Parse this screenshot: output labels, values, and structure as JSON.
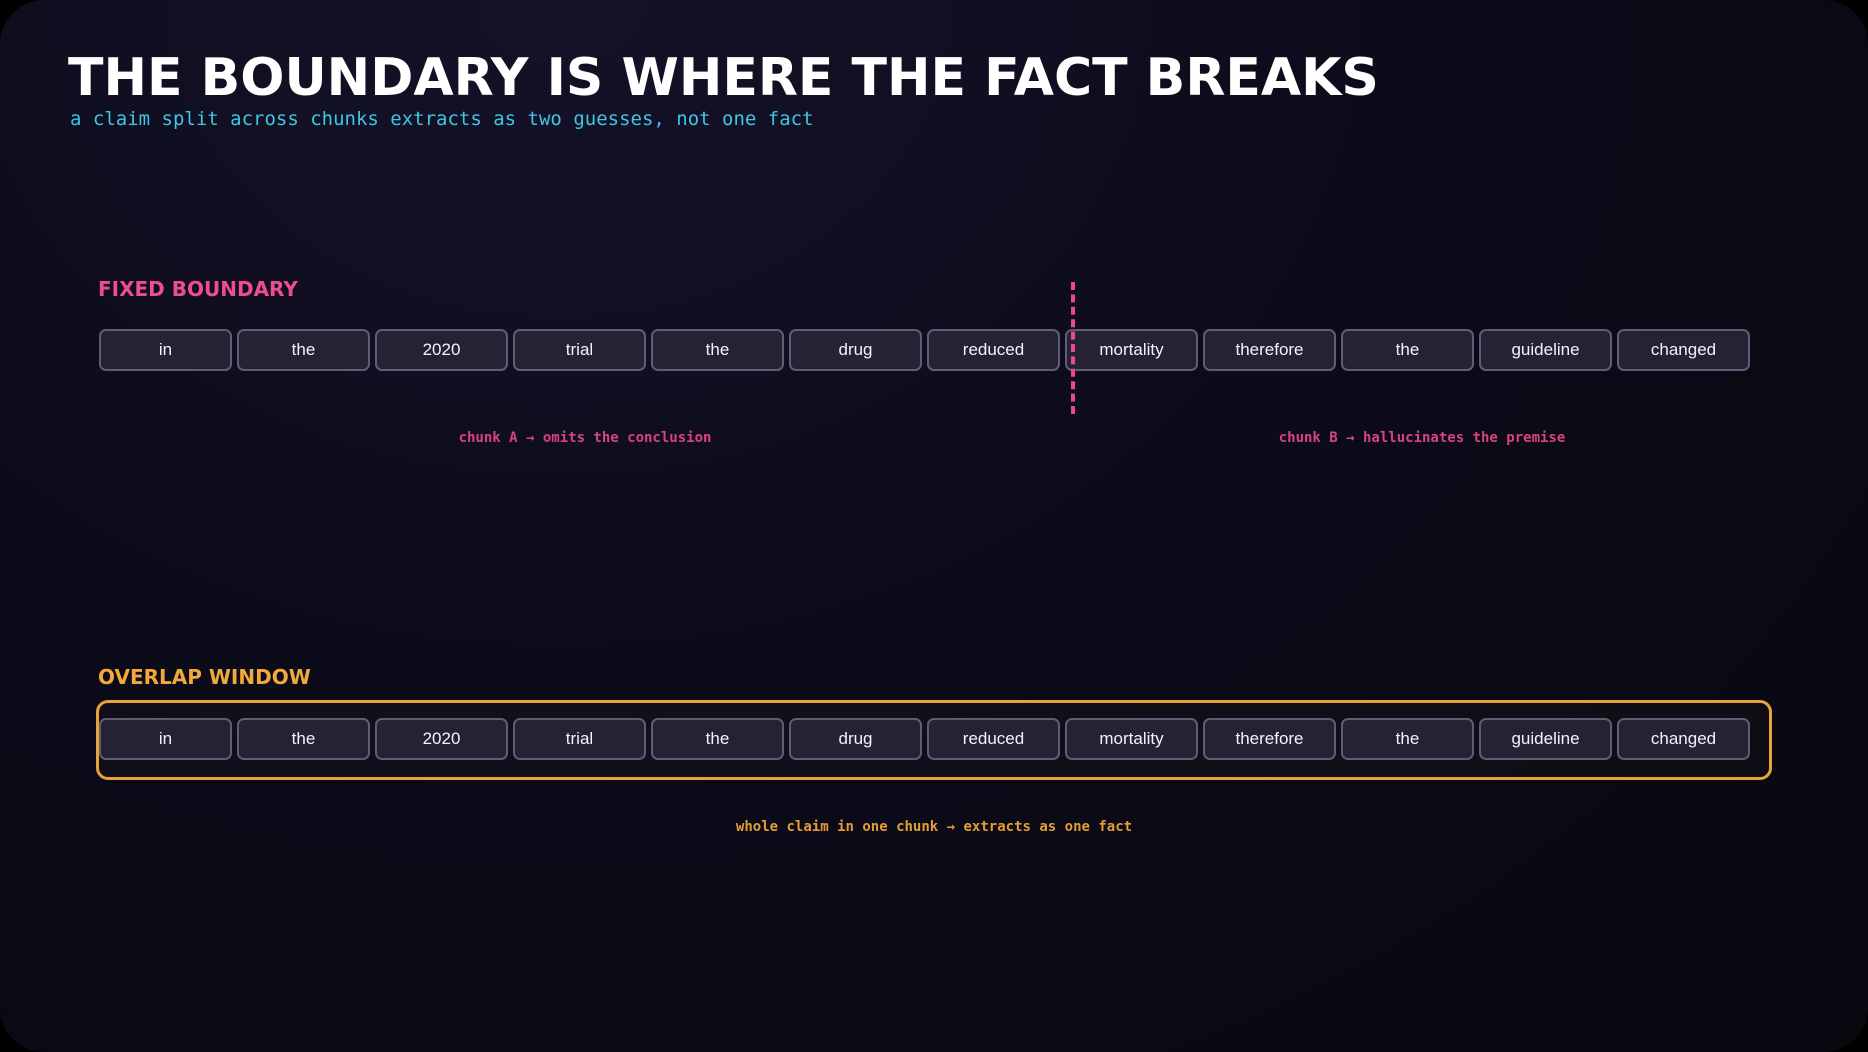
{
  "title": "THE BOUNDARY IS WHERE THE FACT BREAKS",
  "subtitle": "a claim split across chunks extracts as two guesses, not one fact",
  "colors": {
    "fixed_accent": "#ee4d8f",
    "overlap_accent": "#f2a93c",
    "subtitle": "#3ec6e6",
    "token_bg": "#242233",
    "token_border": "#5f5d75"
  },
  "fixed": {
    "label": "FIXED BOUNDARY",
    "tokens": [
      "in",
      "the",
      "2020",
      "trial",
      "the",
      "drug",
      "reduced",
      "mortality",
      "therefore",
      "the",
      "guideline",
      "changed"
    ],
    "boundary_after_token_index": 6,
    "note_a": "chunk A → omits the conclusion",
    "note_b": "chunk B → hallucinates the premise"
  },
  "overlap": {
    "label": "OVERLAP WINDOW",
    "tokens": [
      "in",
      "the",
      "2020",
      "trial",
      "the",
      "drug",
      "reduced",
      "mortality",
      "therefore",
      "the",
      "guideline",
      "changed"
    ],
    "note": "whole claim in one chunk → extracts as one fact"
  }
}
